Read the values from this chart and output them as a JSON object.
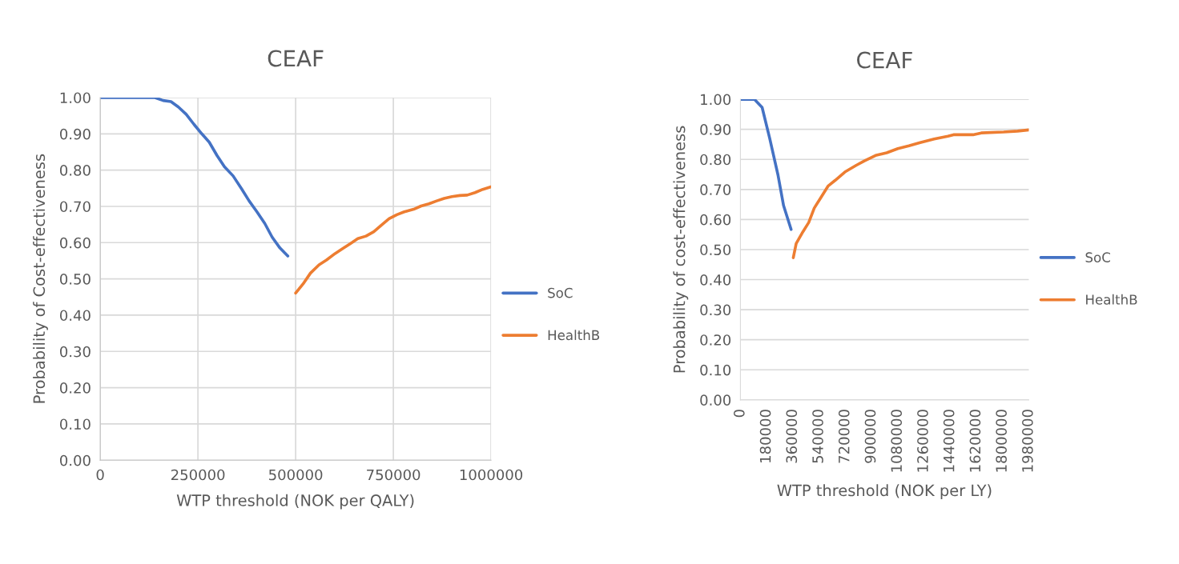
{
  "chart_data": [
    {
      "type": "line",
      "title": "CEAF",
      "xlabel": "WTP threshold (NOK per QALY)",
      "ylabel": "Probability of Cost-effectiveness",
      "xlim": [
        0,
        1000000
      ],
      "xticks": [
        0,
        250000,
        500000,
        750000,
        1000000
      ],
      "ylim": [
        0,
        1
      ],
      "yticks": [
        {
          "value": 0,
          "label": "0.00"
        },
        {
          "value": 0.1,
          "label": "0.10"
        },
        {
          "value": 0.2,
          "label": "0.20"
        },
        {
          "value": 0.3,
          "label": "0.30"
        },
        {
          "value": 0.4,
          "label": "0.40"
        },
        {
          "value": 0.5,
          "label": "0.50"
        },
        {
          "value": 0.6,
          "label": "0.60"
        },
        {
          "value": 0.7,
          "label": "0.70"
        },
        {
          "value": 0.8,
          "label": "0.80"
        },
        {
          "value": 0.9,
          "label": "0.90"
        },
        {
          "value": 1,
          "label": "1.00"
        }
      ],
      "grid": true,
      "legend": "right",
      "marker": "none",
      "line_style": "solid",
      "series": [
        {
          "name": "SoC",
          "color": "#4472c4",
          "x": [
            0,
            140000,
            161000,
            181000,
            200000,
            220000,
            240000,
            260000,
            279000,
            299000,
            318000,
            340000,
            362000,
            381000,
            401000,
            421000,
            440000,
            460000,
            480000
          ],
          "values": [
            1.0,
            1.0,
            0.992,
            0.989,
            0.974,
            0.954,
            0.926,
            0.9,
            0.877,
            0.84,
            0.809,
            0.784,
            0.748,
            0.715,
            0.685,
            0.653,
            0.615,
            0.585,
            0.563
          ]
        },
        {
          "name": "HealthB",
          "color": "#ed7d31",
          "x": [
            500000,
            519000,
            538000,
            560000,
            579000,
            601000,
            621000,
            641000,
            659000,
            680000,
            700000,
            719000,
            739000,
            759000,
            778000,
            802000,
            821000,
            841000,
            861000,
            880000,
            900000,
            920000,
            939000,
            959000,
            979000,
            1000000
          ],
          "values": [
            0.461,
            0.486,
            0.516,
            0.539,
            0.552,
            0.57,
            0.584,
            0.598,
            0.611,
            0.618,
            0.63,
            0.648,
            0.666,
            0.677,
            0.685,
            0.692,
            0.701,
            0.707,
            0.715,
            0.722,
            0.727,
            0.73,
            0.731,
            0.738,
            0.747,
            0.754
          ]
        }
      ]
    },
    {
      "type": "line",
      "title": "CEAF",
      "xlabel": "WTP threshold (NOK per LY)",
      "ylabel": "Probability of cost-effectiveness",
      "xlim": [
        0,
        1980000
      ],
      "xticks": [
        0,
        180000,
        360000,
        540000,
        720000,
        900000,
        1080000,
        1260000,
        1440000,
        1620000,
        1800000,
        1980000
      ],
      "ylim": [
        0,
        1
      ],
      "yticks": [
        {
          "value": 0,
          "label": "0.00"
        },
        {
          "value": 0.1,
          "label": "0.10"
        },
        {
          "value": 0.2,
          "label": "0.20"
        },
        {
          "value": 0.3,
          "label": "0.30"
        },
        {
          "value": 0.4,
          "label": "0.40"
        },
        {
          "value": 0.5,
          "label": "0.50"
        },
        {
          "value": 0.6,
          "label": "0.60"
        },
        {
          "value": 0.7,
          "label": "0.70"
        },
        {
          "value": 0.8,
          "label": "0.80"
        },
        {
          "value": 0.9,
          "label": "0.90"
        },
        {
          "value": 1,
          "label": "1.00"
        }
      ],
      "grid": "y",
      "legend": "right",
      "marker": "none",
      "line_style": "solid",
      "series": [
        {
          "name": "SoC",
          "color": "#4472c4",
          "x": [
            0,
            96000,
            115000,
            149000,
            201000,
            258000,
            296000,
            348000
          ],
          "values": [
            1.0,
            1.0,
            0.99,
            0.973,
            0.87,
            0.748,
            0.647,
            0.567
          ]
        },
        {
          "name": "HealthB",
          "color": "#ed7d31",
          "x": [
            363000,
            383000,
            430000,
            469000,
            507000,
            555000,
            603000,
            650000,
            717000,
            794000,
            851000,
            928000,
            1004000,
            1081000,
            1157000,
            1234000,
            1330000,
            1425000,
            1463000,
            1597000,
            1654000,
            1807000,
            1903000,
            1980000
          ],
          "values": [
            0.473,
            0.52,
            0.56,
            0.59,
            0.638,
            0.675,
            0.712,
            0.73,
            0.758,
            0.78,
            0.795,
            0.813,
            0.822,
            0.836,
            0.845,
            0.856,
            0.868,
            0.877,
            0.882,
            0.882,
            0.888,
            0.891,
            0.894,
            0.898
          ]
        }
      ]
    }
  ]
}
